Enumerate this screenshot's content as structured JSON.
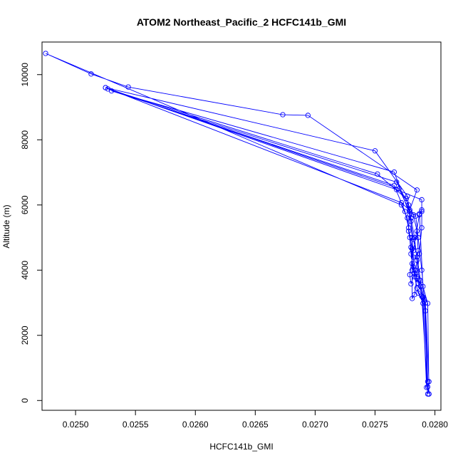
{
  "chart_data": {
    "type": "line",
    "title": "ATOM2 Northeast_Pacific_2 HCFC141b_GMI",
    "xlabel": "HCFC141b_GMI",
    "ylabel": "Altitude (m)",
    "xlim": [
      0.02472,
      0.02805
    ],
    "ylim": [
      -300,
      11000
    ],
    "x_ticks": [
      0.025,
      0.0255,
      0.026,
      0.0265,
      0.027,
      0.0275,
      0.028
    ],
    "x_tick_labels": [
      "0.0250",
      "0.0255",
      "0.0260",
      "0.0265",
      "0.0270",
      "0.0275",
      "0.0280"
    ],
    "y_ticks": [
      0,
      2000,
      4000,
      6000,
      8000,
      10000
    ],
    "y_tick_labels": [
      "0",
      "2000",
      "4000",
      "6000",
      "8000",
      "10000"
    ],
    "grid": false,
    "marker": "open-circle",
    "series": [
      {
        "color": "#0000ff",
        "points": [
          [
            0.02795,
            200
          ],
          [
            0.02794,
            420
          ],
          [
            0.02795,
            580
          ],
          [
            0.02792,
            3000
          ],
          [
            0.0279,
            3150
          ],
          [
            0.02788,
            3500
          ],
          [
            0.02785,
            3750
          ],
          [
            0.02782,
            4100
          ],
          [
            0.0278,
            4500
          ],
          [
            0.02779,
            5000
          ],
          [
            0.02777,
            5600
          ],
          [
            0.02772,
            6000
          ],
          [
            0.02475,
            10650
          ],
          [
            0.02513,
            10020
          ],
          [
            0.02544,
            9620
          ],
          [
            0.02673,
            8770
          ],
          [
            0.02694,
            8750
          ],
          [
            0.02785,
            6460
          ],
          [
            0.02779,
            5850
          ],
          [
            0.02778,
            5200
          ],
          [
            0.0278,
            4700
          ],
          [
            0.02781,
            4200
          ],
          [
            0.02783,
            3800
          ],
          [
            0.02786,
            3300
          ],
          [
            0.02791,
            3050
          ],
          [
            0.02794,
            580
          ],
          [
            0.02792,
            2750
          ],
          [
            0.02789,
            4000
          ],
          [
            0.02786,
            5000
          ],
          [
            0.02784,
            5660
          ],
          [
            0.02772,
            6070
          ],
          [
            0.02525,
            9600
          ],
          [
            0.0275,
            7660
          ],
          [
            0.02777,
            6270
          ],
          [
            0.0278,
            5500
          ],
          [
            0.02782,
            4400
          ],
          [
            0.02783,
            3900
          ],
          [
            0.02785,
            3450
          ],
          [
            0.0279,
            2980
          ],
          [
            0.02793,
            400
          ],
          [
            0.0279,
            3180
          ],
          [
            0.02786,
            3600
          ],
          [
            0.02783,
            4000
          ],
          [
            0.02781,
            4650
          ],
          [
            0.02778,
            5300
          ],
          [
            0.02775,
            5800
          ],
          [
            0.02766,
            6600
          ],
          [
            0.02527,
            9560
          ],
          [
            0.02752,
            6950
          ],
          [
            0.02776,
            6200
          ],
          [
            0.0278,
            5600
          ],
          [
            0.02783,
            5000
          ],
          [
            0.02785,
            4300
          ],
          [
            0.02787,
            3700
          ],
          [
            0.02789,
            3200
          ],
          [
            0.02794,
            200
          ],
          [
            0.02791,
            3100
          ],
          [
            0.02788,
            3680
          ],
          [
            0.02785,
            4400
          ],
          [
            0.02782,
            4950
          ],
          [
            0.02779,
            5700
          ],
          [
            0.02766,
            7010
          ],
          [
            0.0253,
            9500
          ],
          [
            0.02768,
            6700
          ],
          [
            0.02778,
            6000
          ],
          [
            0.02782,
            5700
          ],
          [
            0.02785,
            5200
          ],
          [
            0.02786,
            4600
          ],
          [
            0.02784,
            4000
          ],
          [
            0.0278,
            3580
          ],
          [
            0.02779,
            3860
          ],
          [
            0.02782,
            4600
          ],
          [
            0.02787,
            5700
          ],
          [
            0.02789,
            5800
          ],
          [
            0.02789,
            6160
          ],
          [
            0.02768,
            6470
          ],
          [
            0.02525,
            9600
          ],
          [
            0.0277,
            6500
          ],
          [
            0.02779,
            5800
          ],
          [
            0.02781,
            5000
          ],
          [
            0.02781,
            4000
          ],
          [
            0.02781,
            3130
          ],
          [
            0.02783,
            3250
          ],
          [
            0.02785,
            3800
          ],
          [
            0.02787,
            4500
          ],
          [
            0.02789,
            5300
          ],
          [
            0.02789,
            5850
          ],
          [
            0.02787,
            5730
          ],
          [
            0.0279,
            3500
          ],
          [
            0.02794,
            2980
          ],
          [
            0.02795,
            200
          ]
        ]
      }
    ]
  }
}
